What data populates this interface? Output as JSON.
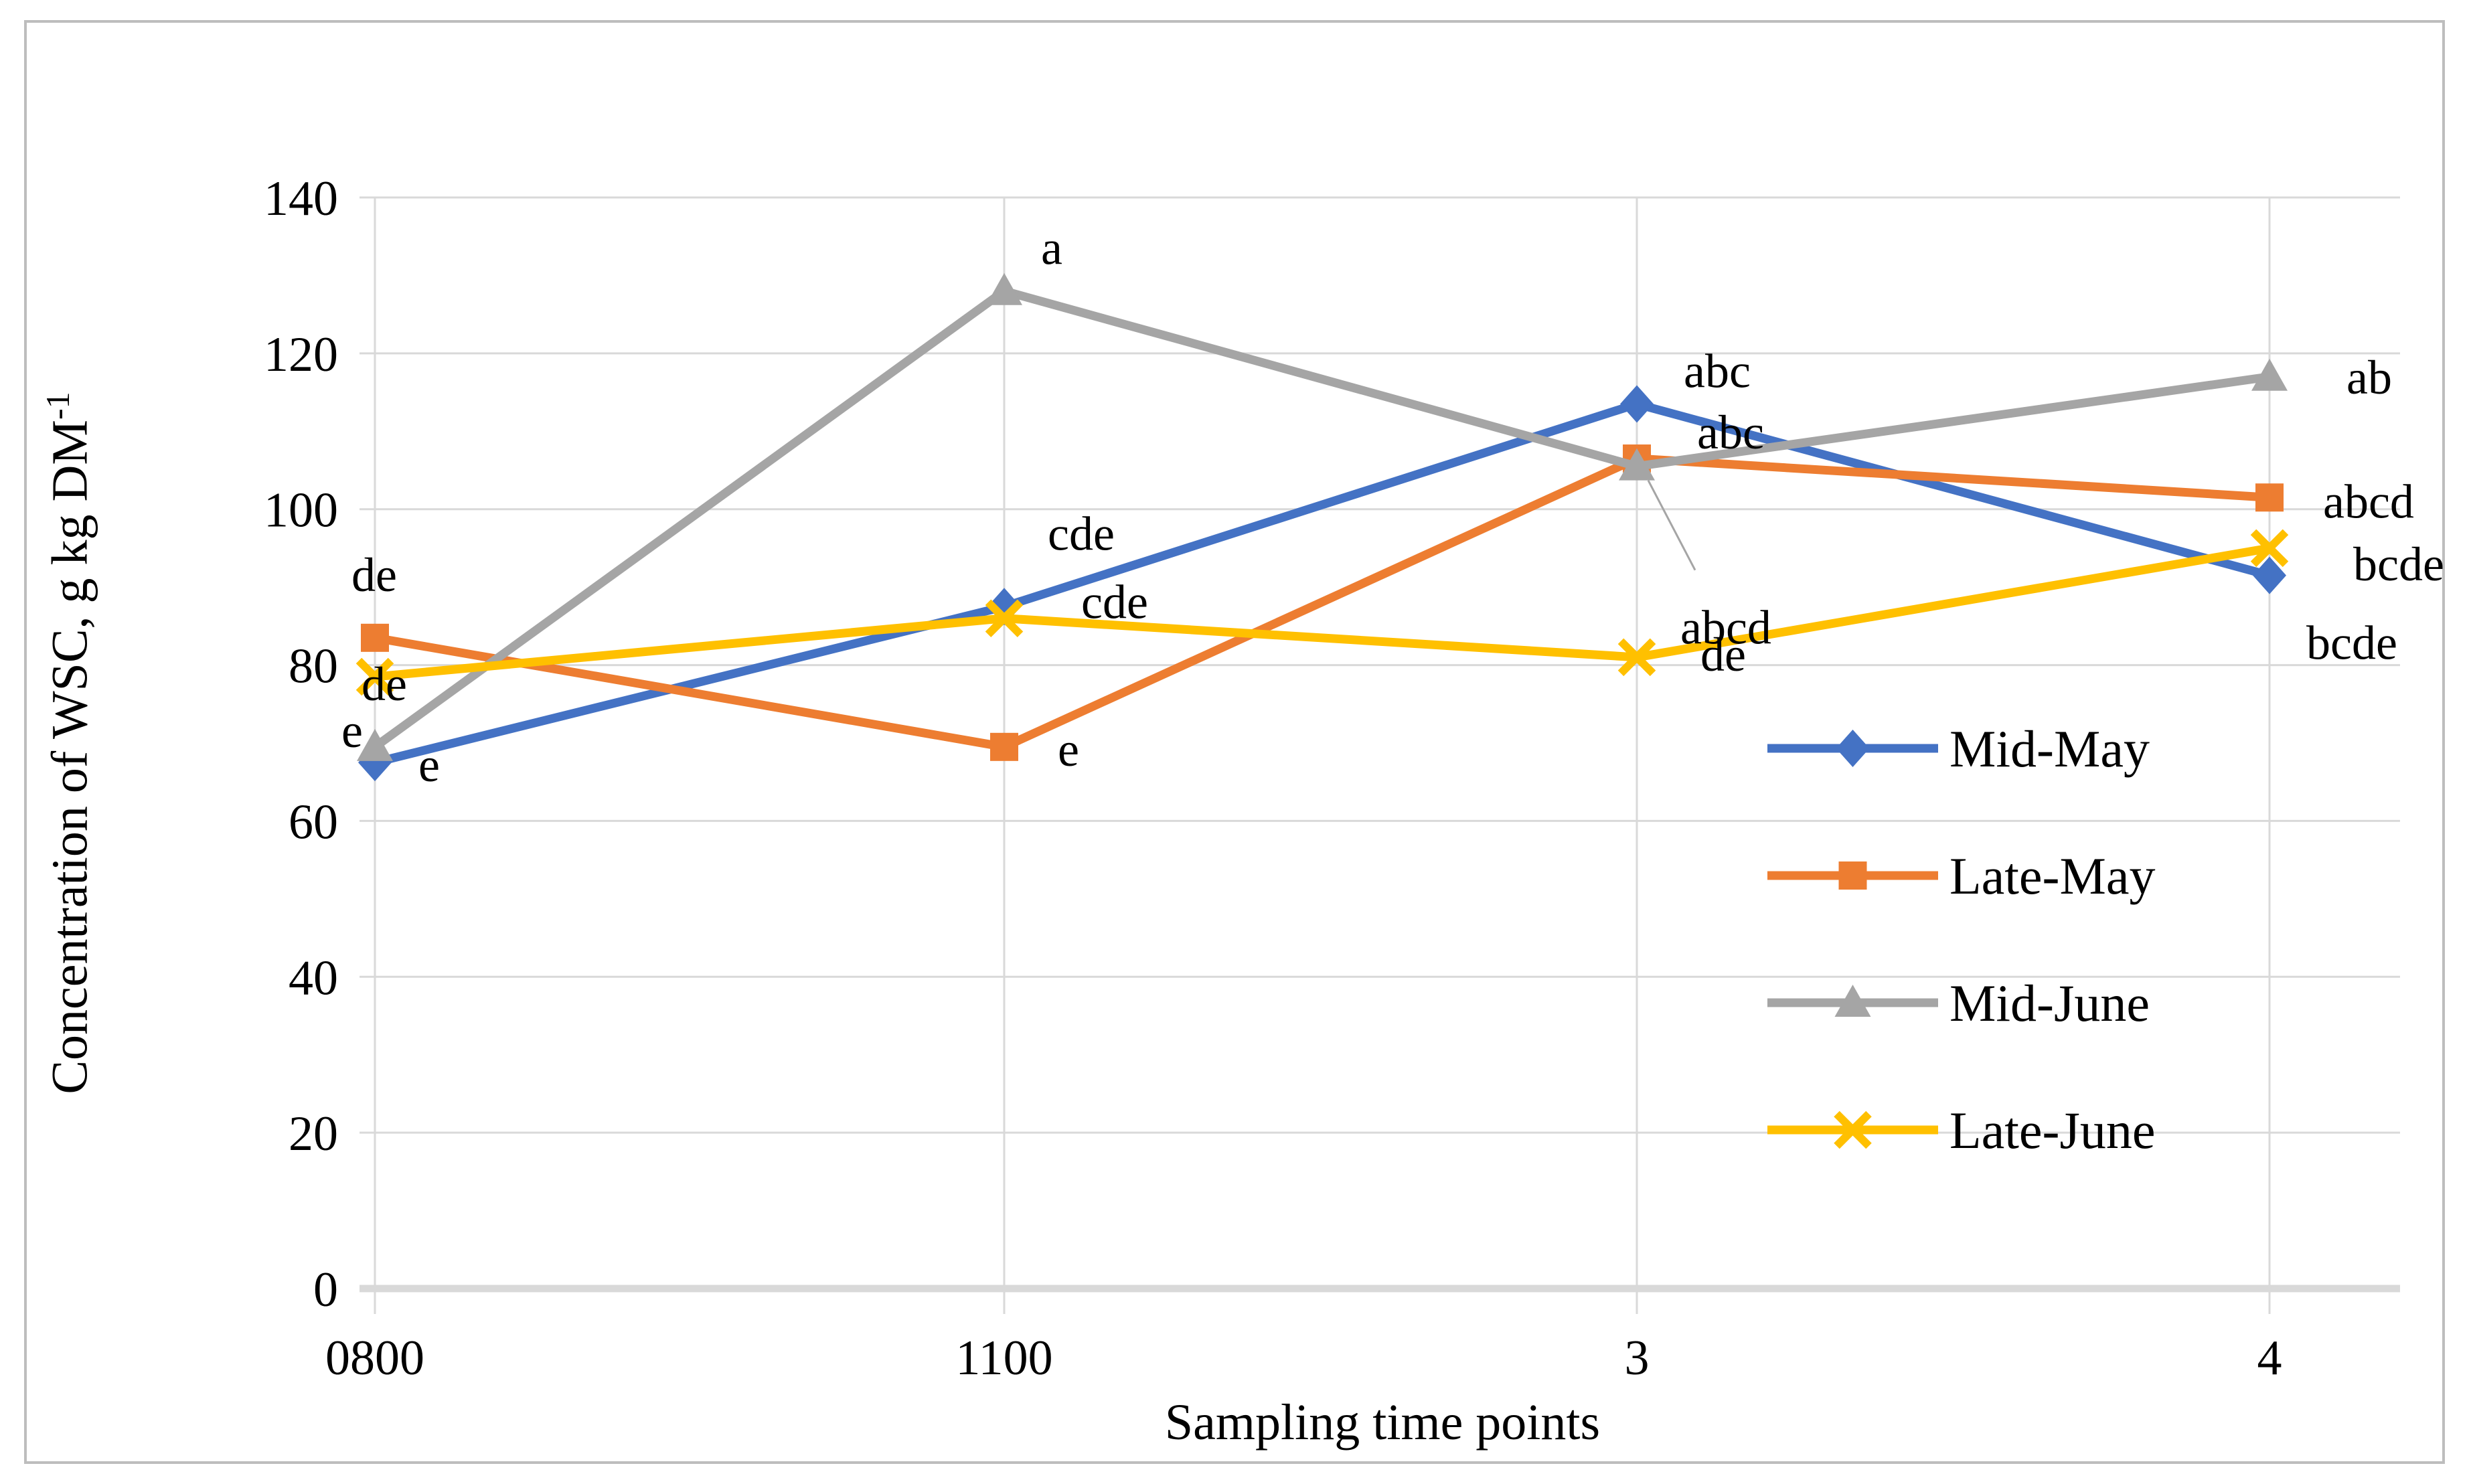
{
  "figure": {
    "background": "#FFFFFF",
    "border_color": "#BDBDBD"
  },
  "chart_data": {
    "type": "line",
    "title": "",
    "xlabel": "Sampling time points",
    "ylabel": "Concentration of WSC, g kg DM",
    "ylabel_superscript": "-1",
    "categories": [
      "0800",
      "1100",
      "3",
      "4"
    ],
    "ylim": [
      0,
      140
    ],
    "yticks": [
      0,
      20,
      40,
      60,
      80,
      100,
      120,
      140
    ],
    "grid": true,
    "gridline_color": "#D9D9D9",
    "axis_line_color": "#D9D9D9",
    "text_color": "#000000",
    "legend_position": "inside-right",
    "series": [
      {
        "name": "Mid-May",
        "color": "#4472C4",
        "marker": "diamond",
        "values": [
          67.5,
          87.5,
          113.5,
          91.5
        ],
        "point_labels": [
          "e",
          "cde",
          "abc",
          "bcde"
        ]
      },
      {
        "name": "Late-May",
        "color": "#ED7D31",
        "marker": "square",
        "values": [
          83.5,
          69.5,
          106.5,
          101.5
        ],
        "point_labels": [
          "de",
          "e",
          "abc",
          "abcd"
        ]
      },
      {
        "name": "Mid-June",
        "color": "#A5A5A5",
        "marker": "triangle",
        "values": [
          69.5,
          128,
          105.5,
          117
        ],
        "point_labels": [
          "e",
          "a",
          "abcd",
          "ab"
        ]
      },
      {
        "name": "Late-June",
        "color": "#FFC000",
        "marker": "x",
        "values": [
          78.5,
          86,
          81,
          95
        ],
        "point_labels": [
          "de",
          "cde",
          "de",
          "bcde"
        ]
      }
    ]
  }
}
